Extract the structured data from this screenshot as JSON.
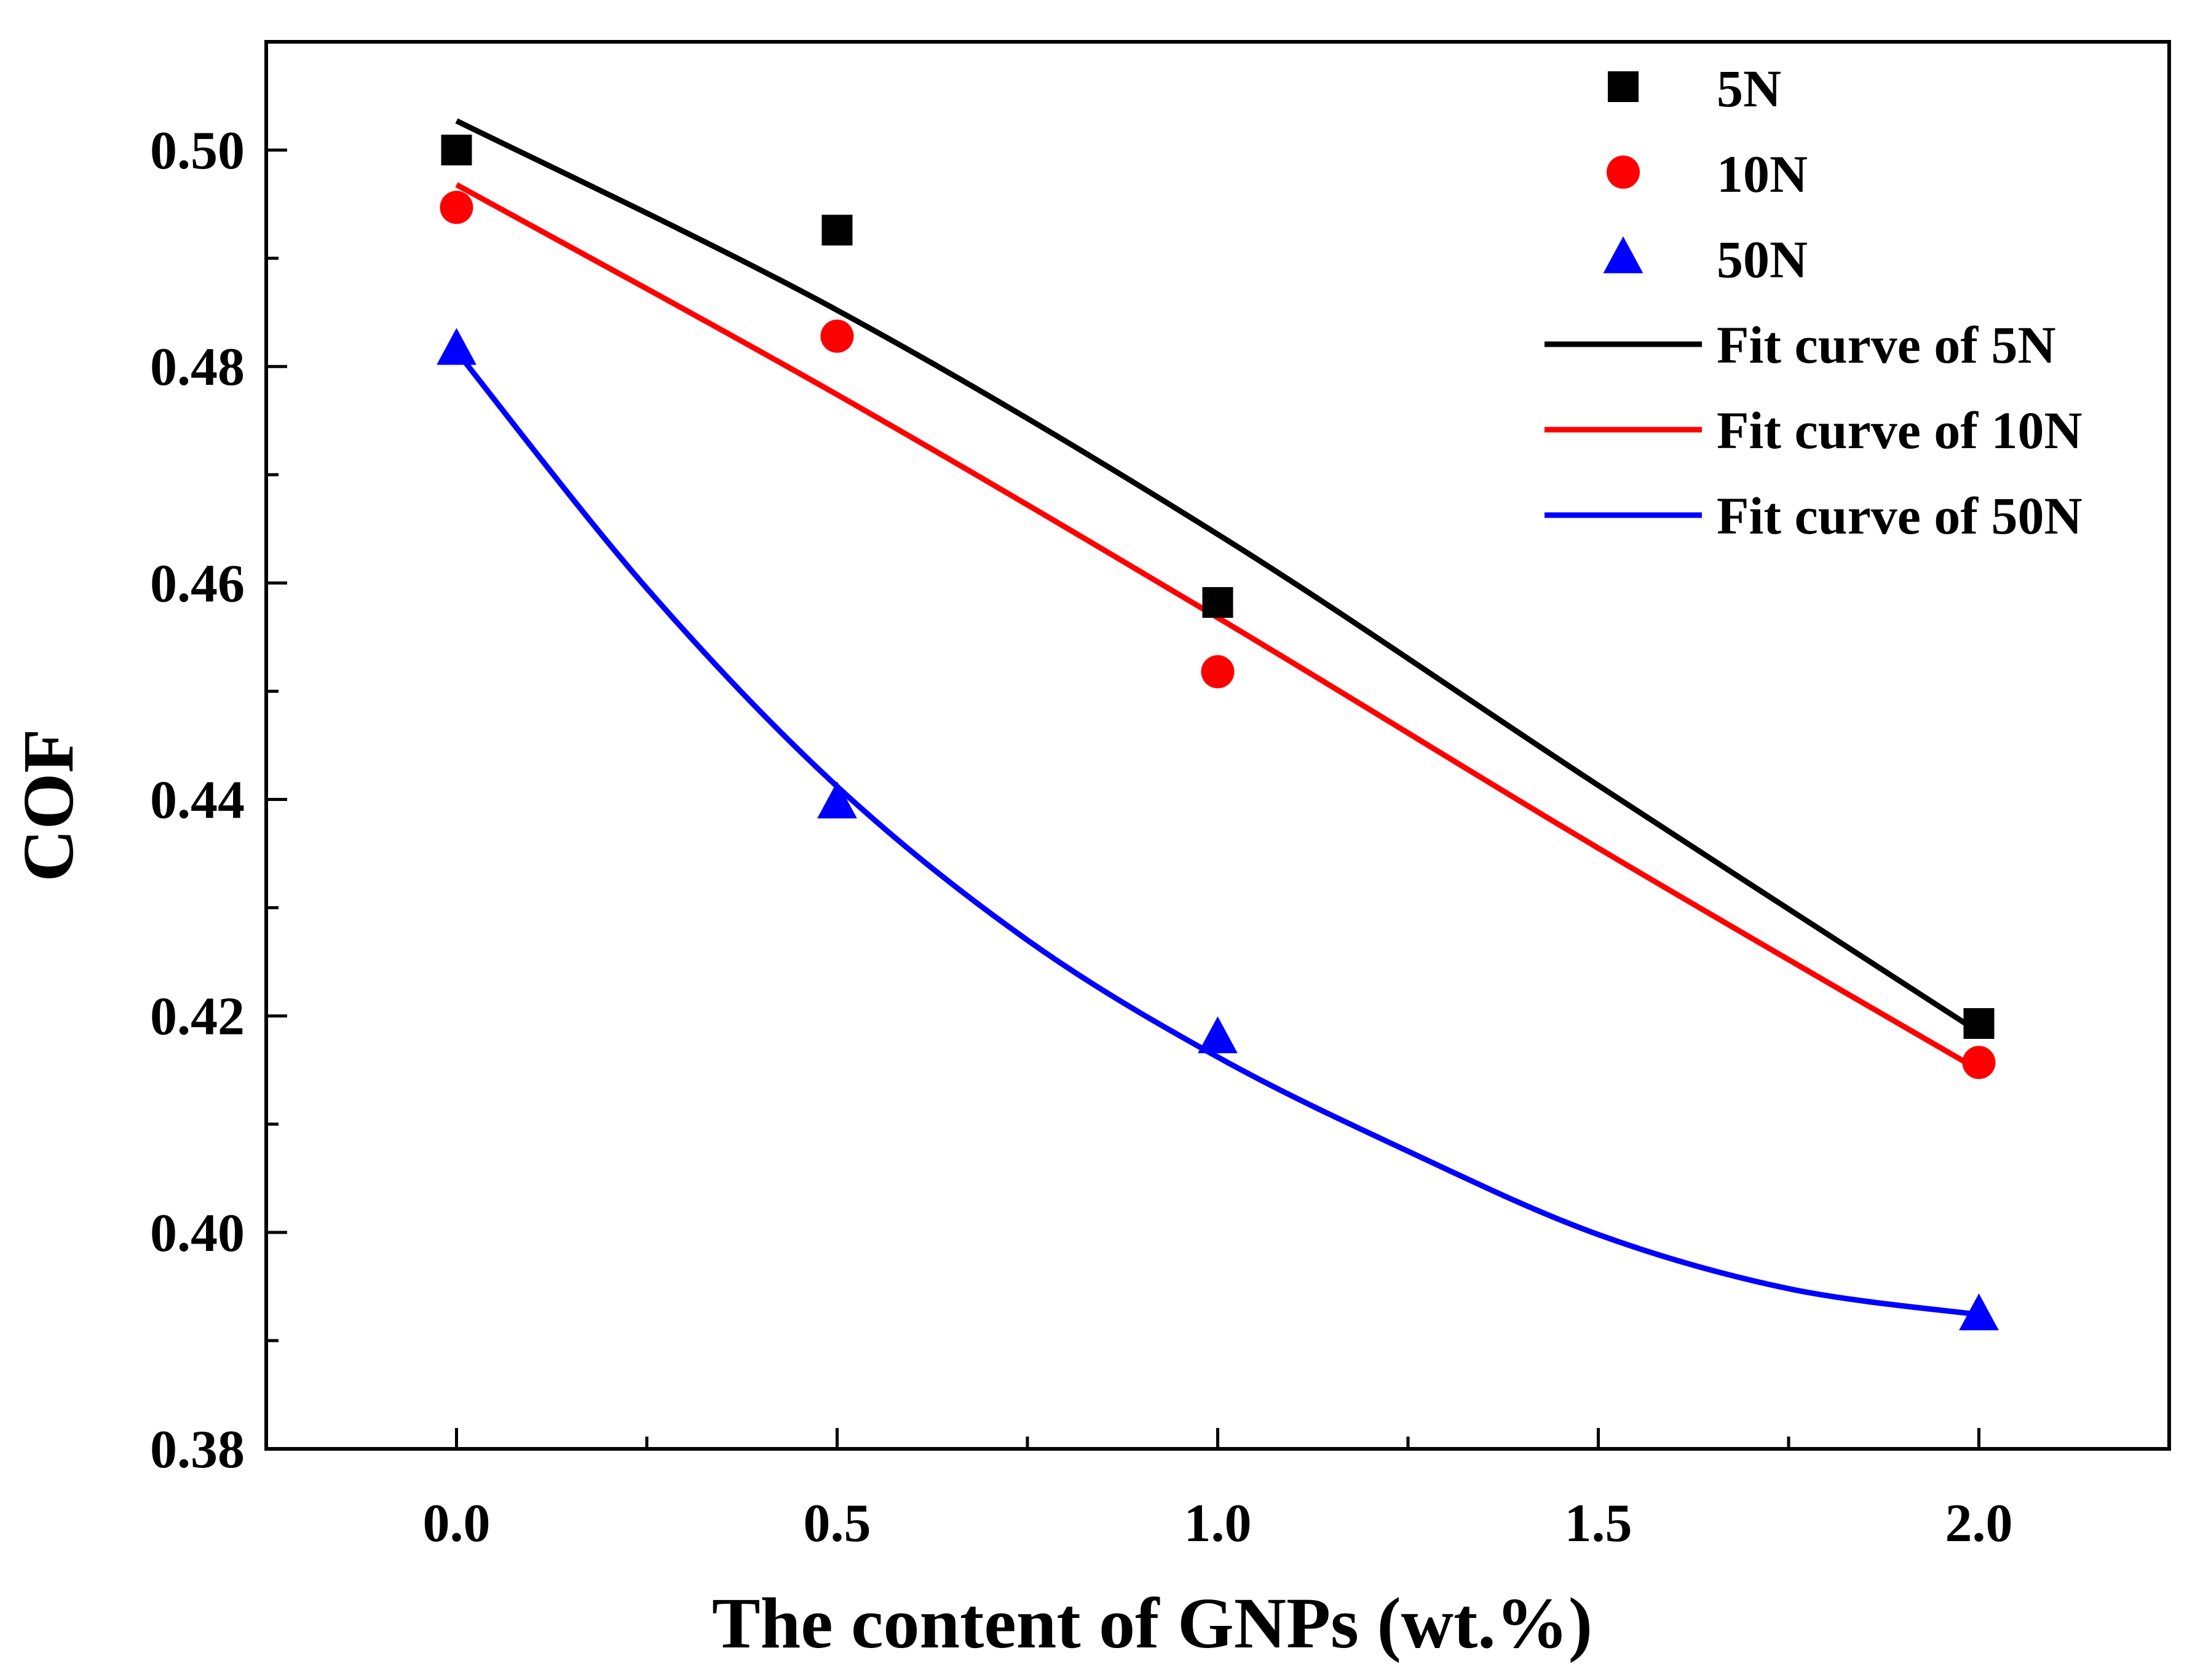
{
  "chart_data": {
    "type": "scatter",
    "title": "",
    "xlabel": "The content of GNPs (wt.%)",
    "ylabel": "COF",
    "xlim": [
      -0.25,
      2.25
    ],
    "ylim": [
      0.38,
      0.51
    ],
    "x_ticks": [
      {
        "value": 0.0,
        "label": "0.0"
      },
      {
        "value": 0.5,
        "label": "0.5"
      },
      {
        "value": 1.0,
        "label": "1.0"
      },
      {
        "value": 1.5,
        "label": "1.5"
      },
      {
        "value": 2.0,
        "label": "2.0"
      }
    ],
    "y_ticks": [
      {
        "value": 0.38,
        "label": "0.38"
      },
      {
        "value": 0.4,
        "label": "0.40"
      },
      {
        "value": 0.42,
        "label": "0.42"
      },
      {
        "value": 0.44,
        "label": "0.44"
      },
      {
        "value": 0.46,
        "label": "0.46"
      },
      {
        "value": 0.48,
        "label": "0.48"
      },
      {
        "value": 0.5,
        "label": "0.50"
      }
    ],
    "x_minor_ticks": [
      0.25,
      0.75,
      1.25,
      1.75
    ],
    "y_minor_ticks": [
      0.39,
      0.41,
      0.43,
      0.45,
      0.47,
      0.49
    ],
    "grid": false,
    "legend_position": "top-right",
    "series": [
      {
        "name": "5N",
        "marker": "square",
        "color": "#000000",
        "x": [
          0.0,
          0.5,
          1.0,
          2.0
        ],
        "y": [
          0.5,
          0.4926,
          0.4582,
          0.4193
        ]
      },
      {
        "name": "10N",
        "marker": "circle",
        "color": "#ff0000",
        "x": [
          0.0,
          0.5,
          1.0,
          2.0
        ],
        "y": [
          0.4947,
          0.4828,
          0.4518,
          0.4157
        ]
      },
      {
        "name": "50N",
        "marker": "triangle",
        "color": "#0000ff",
        "x": [
          0.0,
          0.5,
          1.0,
          2.0
        ],
        "y": [
          0.4816,
          0.4397,
          0.418,
          0.3924
        ]
      }
    ],
    "fit_curves": [
      {
        "name": "Fit curve of 5N",
        "color": "#000000",
        "x": [
          0.0,
          0.5,
          1.0,
          1.5,
          2.0
        ],
        "y": [
          0.5027,
          0.4852,
          0.4645,
          0.4413,
          0.4185
        ]
      },
      {
        "name": "Fit curve of 10N",
        "color": "#ff0000",
        "x": [
          0.0,
          0.5,
          1.0,
          1.5,
          2.0
        ],
        "y": [
          0.4968,
          0.4774,
          0.4568,
          0.4355,
          0.415
        ]
      },
      {
        "name": "Fit curve of 50N",
        "color": "#0000ff",
        "x": [
          0.0,
          0.25,
          0.5,
          0.75,
          1.0,
          1.25,
          1.5,
          1.75,
          2.0
        ],
        "y": [
          0.4814,
          0.4595,
          0.4412,
          0.427,
          0.4162,
          0.4075,
          0.3998,
          0.3948,
          0.3924
        ]
      }
    ]
  }
}
